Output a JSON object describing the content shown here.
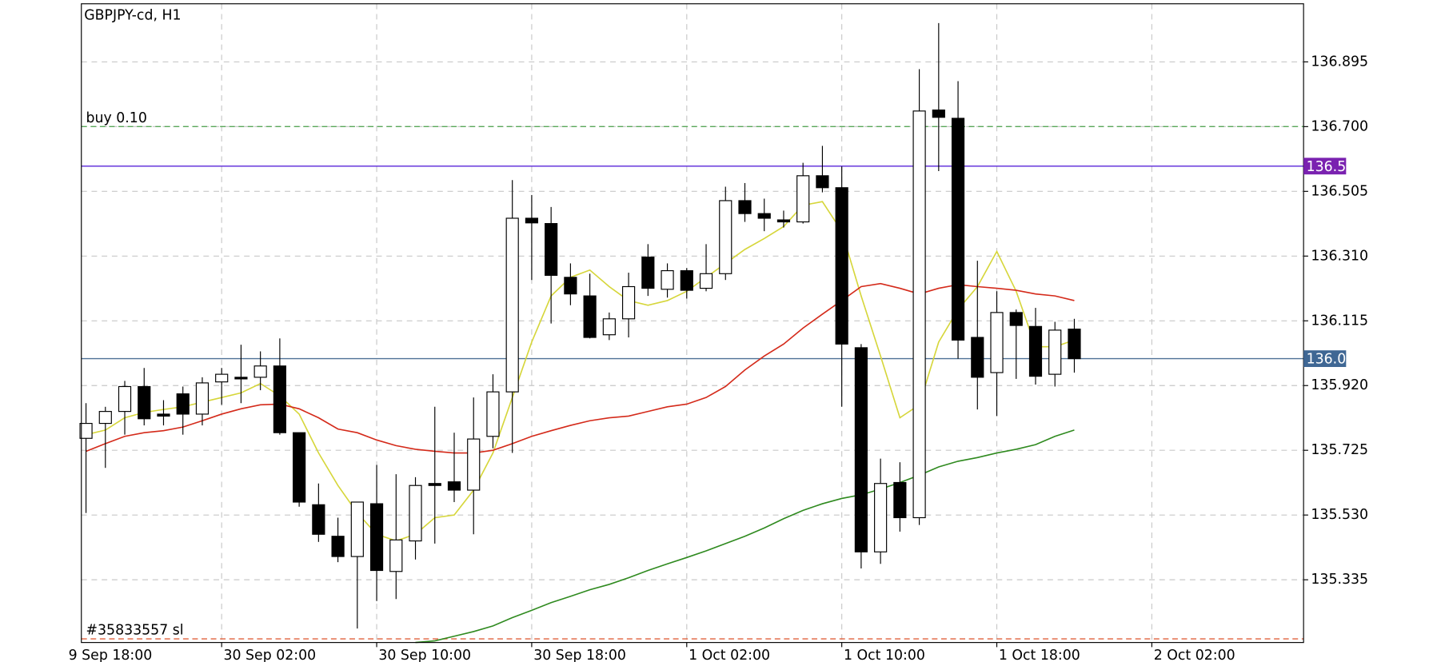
{
  "chart_data": {
    "type": "candlestick",
    "title": "GBPJPY-cd, H1",
    "bull_color": "#ffffff",
    "bear_color": "#000000",
    "open": [
      135.761,
      135.806,
      135.842,
      135.917,
      135.834,
      135.895,
      135.834,
      135.931,
      135.945,
      135.945,
      135.979,
      135.778,
      135.561,
      135.466,
      135.405,
      135.564,
      135.36,
      135.452,
      135.625,
      135.63,
      135.605,
      135.767,
      135.901,
      136.424,
      136.408,
      136.246,
      136.19,
      136.073,
      136.121,
      136.307,
      136.21,
      136.266,
      136.213,
      136.257,
      136.477,
      136.438,
      136.419,
      136.413,
      136.552,
      136.516,
      136.034,
      135.419,
      135.628,
      135.522,
      136.75,
      136.725,
      136.065,
      135.959,
      136.14,
      136.098,
      135.954,
      136.09
    ],
    "high": [
      135.867,
      135.856,
      135.934,
      135.973,
      135.876,
      135.917,
      135.945,
      135.973,
      136.043,
      136.023,
      136.062,
      135.778,
      135.625,
      135.522,
      135.569,
      135.681,
      135.653,
      135.644,
      135.856,
      135.778,
      135.884,
      135.954,
      136.539,
      136.494,
      136.458,
      136.288,
      136.257,
      136.14,
      136.26,
      136.346,
      136.288,
      136.274,
      136.346,
      136.519,
      136.53,
      136.483,
      136.447,
      136.591,
      136.642,
      136.58,
      136.045,
      135.7,
      135.689,
      136.873,
      137.012,
      136.837,
      136.296,
      136.204,
      136.149,
      136.154,
      136.112,
      136.121
    ],
    "low": [
      135.536,
      135.672,
      135.772,
      135.8,
      135.8,
      135.772,
      135.8,
      135.862,
      135.867,
      135.906,
      135.772,
      135.555,
      135.449,
      135.388,
      135.188,
      135.271,
      135.277,
      135.396,
      135.444,
      135.569,
      135.472,
      135.731,
      135.717,
      136.238,
      136.107,
      136.162,
      136.062,
      136.057,
      136.065,
      136.19,
      136.185,
      136.182,
      136.204,
      136.238,
      136.413,
      136.385,
      136.396,
      136.408,
      136.502,
      135.856,
      135.369,
      135.383,
      135.48,
      135.5,
      136.566,
      136.001,
      135.848,
      135.828,
      135.94,
      135.923,
      135.917,
      135.959
    ],
    "close": [
      135.806,
      135.842,
      135.917,
      135.82,
      135.828,
      135.834,
      135.928,
      135.954,
      135.94,
      135.979,
      135.778,
      135.569,
      135.472,
      135.405,
      135.569,
      135.363,
      135.455,
      135.619,
      135.619,
      135.605,
      135.759,
      135.901,
      136.424,
      136.41,
      136.252,
      136.196,
      136.065,
      136.121,
      136.218,
      136.213,
      136.266,
      136.207,
      136.257,
      136.477,
      136.438,
      136.424,
      136.413,
      136.552,
      136.516,
      136.045,
      135.419,
      135.625,
      135.522,
      136.747,
      136.728,
      136.057,
      135.945,
      136.14,
      136.101,
      135.948,
      136.087,
      136.001
    ],
    "series": [
      {
        "color": "#d6d63a",
        "values": [
          135.772,
          135.786,
          135.823,
          135.839,
          135.848,
          135.856,
          135.87,
          135.884,
          135.898,
          135.926,
          135.889,
          135.834,
          135.717,
          135.619,
          135.536,
          135.472,
          135.452,
          135.472,
          135.522,
          135.53,
          135.605,
          135.717,
          135.884,
          136.051,
          136.19,
          136.246,
          136.268,
          136.218,
          136.176,
          136.162,
          136.176,
          136.204,
          136.246,
          136.288,
          136.33,
          136.363,
          136.399,
          136.463,
          136.474,
          136.385,
          136.19,
          136.009,
          135.823,
          135.862,
          136.051,
          136.149,
          136.218,
          136.324,
          136.204,
          136.037,
          136.037,
          136.057
        ]
      },
      {
        "color": "#d42a1a",
        "values": [
          135.722,
          135.745,
          135.767,
          135.778,
          135.784,
          135.795,
          135.814,
          135.834,
          135.85,
          135.862,
          135.864,
          135.85,
          135.823,
          135.789,
          135.778,
          135.756,
          135.739,
          135.728,
          135.722,
          135.717,
          135.717,
          135.725,
          135.745,
          135.767,
          135.784,
          135.8,
          135.814,
          135.823,
          135.828,
          135.842,
          135.856,
          135.864,
          135.884,
          135.917,
          135.967,
          136.009,
          136.045,
          136.093,
          136.135,
          136.176,
          136.218,
          136.227,
          136.213,
          136.196,
          136.213,
          136.224,
          136.218,
          136.213,
          136.207,
          136.196,
          136.19,
          136.176
        ]
      },
      {
        "color": "#2f8a1f",
        "values": [
          null,
          null,
          null,
          null,
          null,
          null,
          null,
          null,
          null,
          null,
          null,
          null,
          null,
          null,
          null,
          null,
          null,
          135.146,
          135.151,
          135.165,
          135.179,
          135.196,
          135.221,
          135.243,
          135.266,
          135.285,
          135.305,
          135.321,
          135.341,
          135.363,
          135.383,
          135.402,
          135.422,
          135.444,
          135.466,
          135.491,
          135.519,
          135.544,
          135.564,
          135.58,
          135.591,
          135.608,
          135.628,
          135.65,
          135.675,
          135.692,
          135.703,
          135.717,
          135.728,
          135.742,
          135.767,
          135.786
        ]
      }
    ],
    "hlines": [
      {
        "name": "buy 0.10",
        "value": 136.7,
        "color": "#5aa85a",
        "dashed": true
      },
      {
        "value": 136.581,
        "color": "#5a24d8",
        "box_color": "#7a22b0",
        "box": true
      },
      {
        "value": 136.001,
        "color": "#4e7196",
        "box_color": "#3f6794",
        "box": true
      },
      {
        "name": "#35833557 sl",
        "value": 135.157,
        "color": "#e0603c",
        "dashed": true
      }
    ],
    "xlim": [
      -0.24,
      62.83
    ],
    "xticks": [
      {
        "value": -1,
        "label": "9 Sep 18:00"
      },
      {
        "value": 7,
        "label": "30 Sep 02:00"
      },
      {
        "value": 15,
        "label": "30 Sep 10:00"
      },
      {
        "value": 23,
        "label": "30 Sep 18:00"
      },
      {
        "value": 31,
        "label": "1 Oct 02:00"
      },
      {
        "value": 39,
        "label": "1 Oct 10:00"
      },
      {
        "value": 47,
        "label": "1 Oct 18:00"
      },
      {
        "value": 55,
        "label": "2 Oct 02:00"
      }
    ],
    "ylim": [
      135.146,
      137.07
    ],
    "yticks": [
      135.335,
      {
        "value": 135.53,
        "label": "135.530"
      },
      135.725,
      {
        "value": 135.92,
        "label": "135.920"
      },
      136.115,
      {
        "value": 136.31,
        "label": "136.310"
      },
      136.505,
      {
        "value": 136.7,
        "label": "136.700"
      },
      136.895
    ],
    "grid": true
  }
}
